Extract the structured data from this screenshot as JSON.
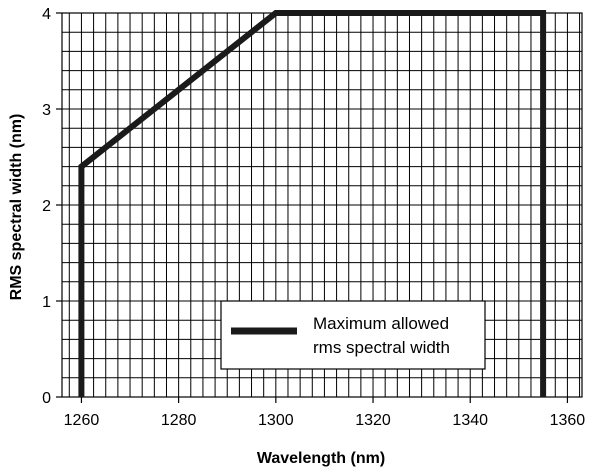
{
  "chart_data": {
    "type": "line",
    "xlabel": "Wavelength (nm)",
    "ylabel": "RMS spectral width (nm)",
    "xlim": [
      1256,
      1363
    ],
    "ylim": [
      0,
      4
    ],
    "xticks": [
      1260,
      1280,
      1300,
      1320,
      1340,
      1360
    ],
    "yticks": [
      0,
      1,
      2,
      3,
      4
    ],
    "grid": true,
    "grid_step_x": 2.5,
    "grid_step_y": 0.2,
    "series": [
      {
        "name": "Maximum allowed rms spectral width",
        "color": "#1a1a1a",
        "x": [
          1260,
          1260,
          1300,
          1355,
          1355
        ],
        "y": [
          0,
          2.4,
          4,
          4,
          0
        ]
      }
    ],
    "legend": {
      "position": "bottom-center",
      "line1": "Maximum allowed",
      "line2": "rms spectral width"
    }
  }
}
